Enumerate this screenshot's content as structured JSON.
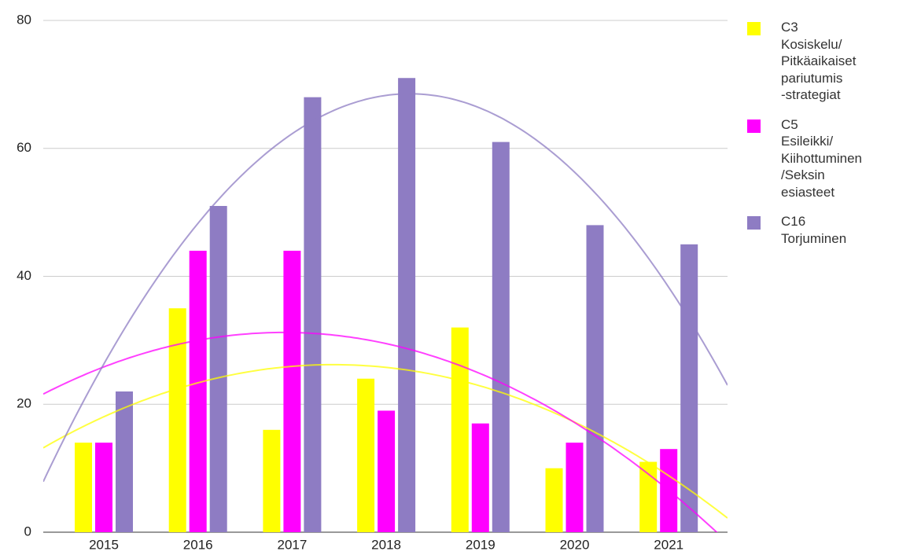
{
  "chart_data": {
    "type": "bar",
    "categories": [
      "2015",
      "2016",
      "2017",
      "2018",
      "2019",
      "2020",
      "2021"
    ],
    "series": [
      {
        "name": "C3\nKosiskelu/\nPitkäaikaiset\npariutumis\n-strategiat",
        "color": "#ffff00",
        "values": [
          14,
          35,
          16,
          24,
          32,
          10,
          11
        ]
      },
      {
        "name": "C5\nEsileikki/\nKiihottuminen\n/Seksin\nesiasteet",
        "color": "#ff00ff",
        "values": [
          14,
          44,
          44,
          19,
          17,
          14,
          13
        ]
      },
      {
        "name": "C16\nTorjuminen",
        "color": "#8e7cc3",
        "values": [
          22,
          51,
          68,
          71,
          61,
          48,
          45
        ]
      }
    ],
    "ylim": [
      0,
      80
    ],
    "yticks": [
      0,
      20,
      40,
      60,
      80
    ],
    "grid": true,
    "trendline": "polynomial",
    "legend": "right"
  }
}
